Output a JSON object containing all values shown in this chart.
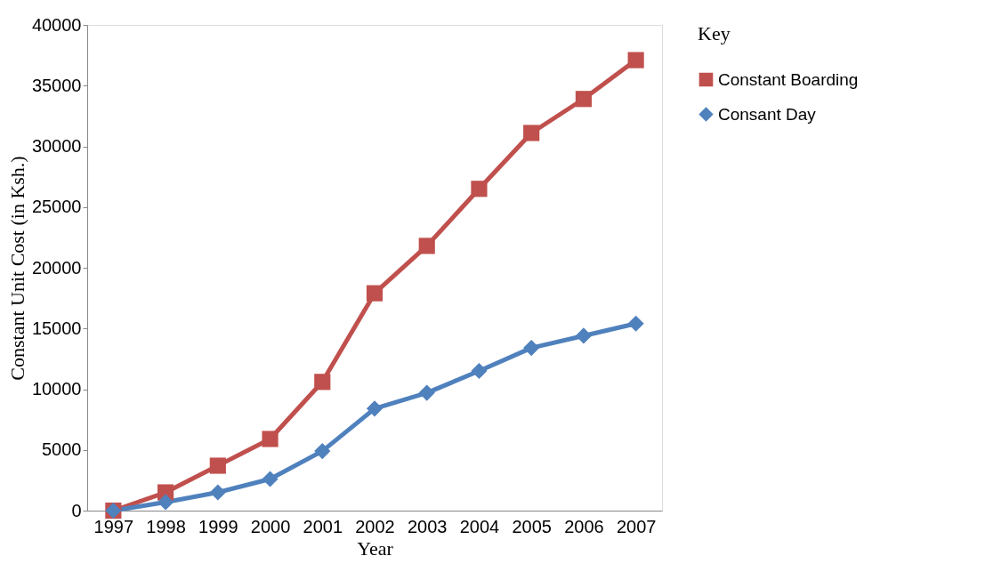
{
  "chart_data": {
    "type": "line",
    "xlabel": "Year",
    "ylabel": "Constant Unit Cost  (in Ksh.)",
    "legend_title": "Key",
    "categories": [
      "1997",
      "1998",
      "1999",
      "2000",
      "2001",
      "2002",
      "2003",
      "2004",
      "2005",
      "2006",
      "2007"
    ],
    "series": [
      {
        "name": "Constant Boarding",
        "color": "#c0504d",
        "marker": "square",
        "values": [
          0,
          1500,
          3700,
          5900,
          10600,
          17900,
          21800,
          26500,
          31100,
          33900,
          37100
        ]
      },
      {
        "name": "Consant Day",
        "color": "#4f81bd",
        "marker": "diamond",
        "values": [
          0,
          700,
          1500,
          2600,
          4900,
          8400,
          9700,
          11500,
          13400,
          14400,
          15400
        ]
      }
    ],
    "ylim": [
      0,
      40000
    ],
    "yticks": [
      0,
      5000,
      10000,
      15000,
      20000,
      25000,
      30000,
      35000,
      40000
    ],
    "grid": false,
    "legend": "right",
    "line_style": "solid"
  }
}
